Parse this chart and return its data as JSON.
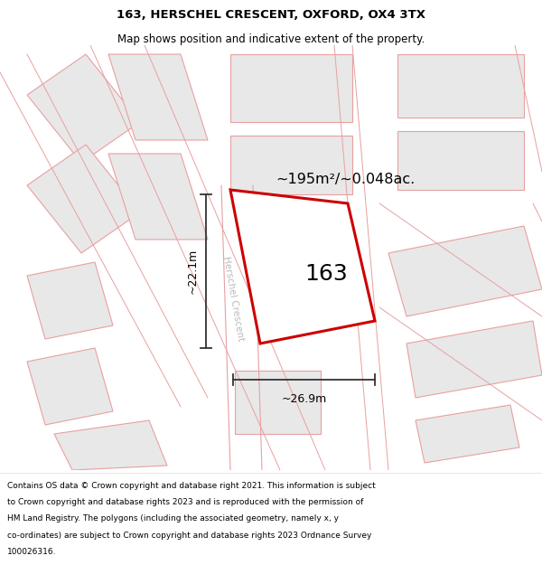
{
  "title_line1": "163, HERSCHEL CRESCENT, OXFORD, OX4 3TX",
  "title_line2": "Map shows position and indicative extent of the property.",
  "footer_lines": [
    "Contains OS data © Crown copyright and database right 2021. This information is subject",
    "to Crown copyright and database rights 2023 and is reproduced with the permission of",
    "HM Land Registry. The polygons (including the associated geometry, namely x, y",
    "co-ordinates) are subject to Crown copyright and database rights 2023 Ordnance Survey",
    "100026316."
  ],
  "map_bg": "#ffffff",
  "building_fill": "#e8e8e8",
  "building_edge": "#e8a0a0",
  "plot_edge": "#cc0000",
  "plot_fill": "#ffffff",
  "plot_label": "163",
  "area_label": "~195m²/~0.048ac.",
  "width_label": "~26.9m",
  "height_label": "~22.1m",
  "road_label": "Herschel Crescent",
  "road_label_color": "#bbbbbb",
  "measure_color": "#333333",
  "title_fontsize": 9.5,
  "subtitle_fontsize": 8.5,
  "footer_fontsize": 6.5
}
